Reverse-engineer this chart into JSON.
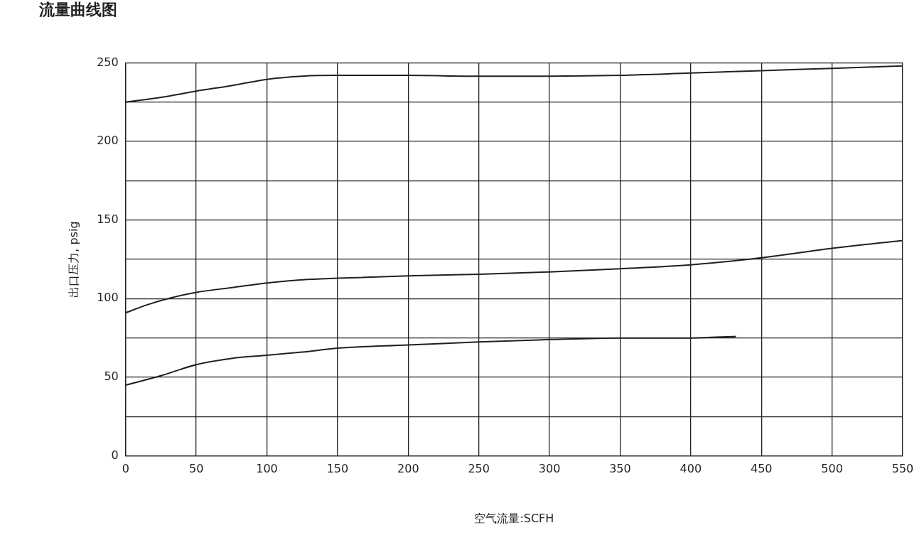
{
  "chart_data": {
    "type": "line",
    "title": "流量曲线图",
    "xlabel": "空气流量:SCFH",
    "ylabel": "出口压力, psig",
    "xlim": [
      0,
      550
    ],
    "xticks": [
      0,
      50,
      100,
      150,
      200,
      250,
      300,
      350,
      400,
      450,
      500,
      550
    ],
    "ylim": [
      0,
      250
    ],
    "yticks": [
      0,
      {
        "value": 25,
        "label": null
      },
      50,
      {
        "value": 75,
        "label": null
      },
      100,
      {
        "value": 125,
        "label": null
      },
      150,
      {
        "value": 175,
        "label": null
      },
      200,
      {
        "value": 225,
        "label": null
      },
      250
    ],
    "grid": true,
    "legend": false,
    "marker": "none",
    "line_style": "solid",
    "series": [
      {
        "color": "#231f20",
        "x": [
          0,
          25,
          50,
          75,
          100,
          125,
          150,
          200,
          250,
          300,
          350,
          400,
          450,
          500,
          550
        ],
        "values": [
          225,
          228,
          232,
          235.5,
          239.5,
          241.5,
          242,
          242,
          241.5,
          241.5,
          242,
          243.5,
          245,
          246.5,
          248
        ]
      },
      {
        "color": "#231f20",
        "x": [
          0,
          15,
          30,
          50,
          75,
          100,
          125,
          150,
          200,
          250,
          300,
          350,
          400,
          450,
          500,
          550
        ],
        "values": [
          91,
          96,
          100,
          104,
          107,
          110,
          112,
          113,
          114.5,
          115.5,
          117,
          119,
          121.5,
          126,
          132,
          137
        ]
      },
      {
        "color": "#231f20",
        "x": [
          0,
          25,
          50,
          75,
          100,
          125,
          150,
          200,
          250,
          300,
          350,
          400,
          432
        ],
        "values": [
          45,
          51,
          58,
          62,
          64,
          66,
          68.5,
          70.5,
          72.5,
          74,
          75,
          75,
          76
        ]
      }
    ]
  }
}
